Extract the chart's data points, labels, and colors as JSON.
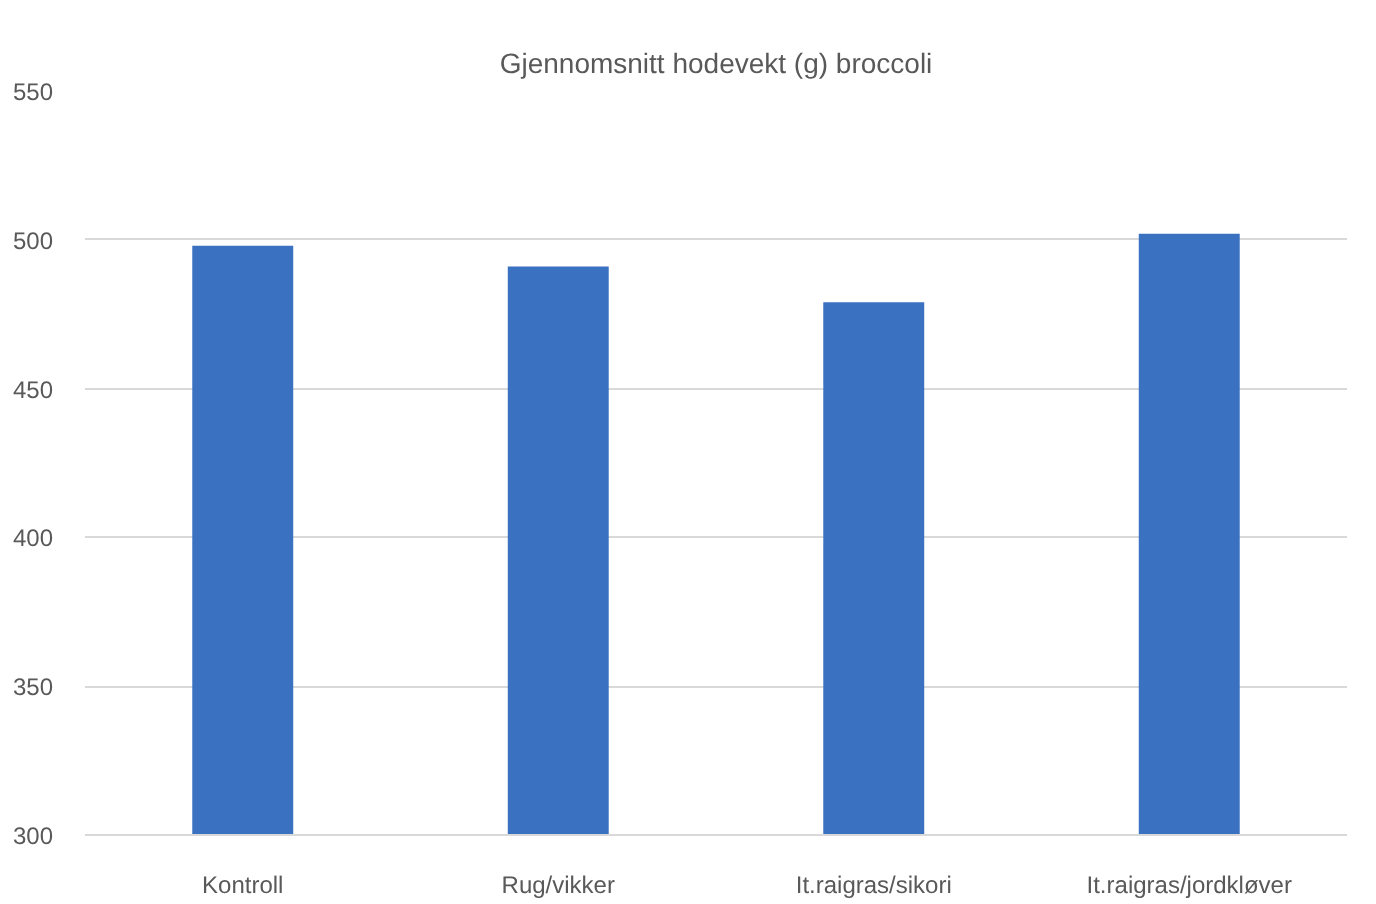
{
  "chart_data": {
    "type": "bar",
    "title": "Gjennomsnitt hodevekt (g) broccoli",
    "categories": [
      "Kontroll",
      "Rug/vikker",
      "It.raigras/sikori",
      "It.raigras/jordkløver"
    ],
    "values": [
      498,
      491,
      479,
      502
    ],
    "color": "#3a71c1",
    "ylim": [
      300,
      550
    ],
    "yticks": [
      300,
      350,
      400,
      450,
      500,
      550
    ],
    "grid": "y"
  }
}
